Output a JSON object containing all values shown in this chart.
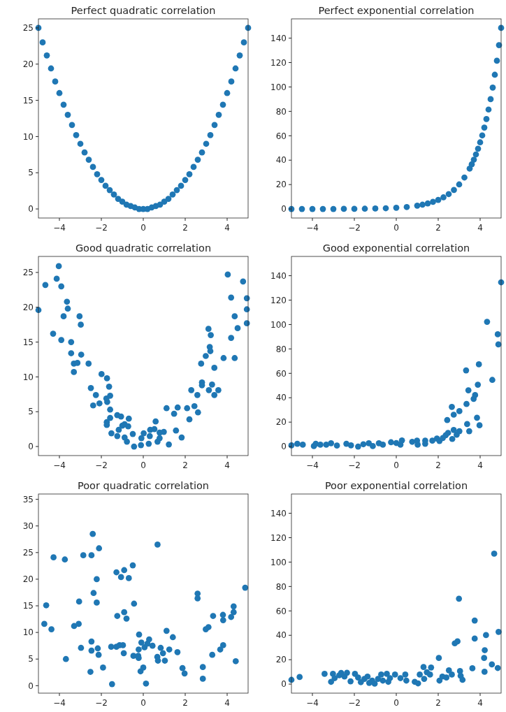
{
  "chart_data": [
    {
      "type": "scatter",
      "title": "Perfect quadratic correlation",
      "color": "#1f77b4",
      "marker": "circle",
      "x": [
        -5,
        -4.8,
        -4.6,
        -4.4,
        -4.2,
        -4,
        -3.8,
        -3.6,
        -3.4,
        -3.2,
        -3,
        -2.8,
        -2.6,
        -2.4,
        -2.2,
        -2,
        -1.8,
        -1.6,
        -1.4,
        -1.2,
        -1,
        -0.8,
        -0.6,
        -0.4,
        -0.2,
        0,
        0.2,
        0.4,
        0.6,
        0.8,
        1,
        1.2,
        1.4,
        1.6,
        1.8,
        2,
        2.2,
        2.4,
        2.6,
        2.8,
        3,
        3.2,
        3.4,
        3.6,
        3.8,
        4,
        4.2,
        4.4,
        4.6,
        4.8,
        5
      ],
      "values": [
        25,
        23,
        21.2,
        19.4,
        17.6,
        16,
        14.4,
        13,
        11.6,
        10.2,
        9,
        7.8,
        6.8,
        5.8,
        4.8,
        4,
        3.2,
        2.6,
        2,
        1.4,
        1,
        0.6,
        0.4,
        0.2,
        0,
        0,
        0,
        0.2,
        0.4,
        0.6,
        1,
        1.4,
        2,
        2.6,
        3.2,
        4,
        4.8,
        5.8,
        6.8,
        7.8,
        9,
        10.2,
        11.6,
        13,
        14.4,
        16,
        17.6,
        19.4,
        21.2,
        23,
        25
      ],
      "xlim": [
        -5,
        5
      ],
      "ylim": [
        -1.25,
        26.25
      ],
      "xticks": [
        -4,
        -2,
        0,
        2,
        4
      ],
      "yticks": [
        0,
        5,
        10,
        15,
        20,
        25
      ]
    },
    {
      "type": "scatter",
      "title": "Perfect exponential correlation",
      "color": "#1f77b4",
      "marker": "circle",
      "x": [
        -5,
        -4.5,
        -4,
        -3.5,
        -3,
        -2.5,
        -2,
        -1.5,
        -1,
        -0.5,
        0,
        0.5,
        1,
        1.25,
        1.5,
        1.75,
        2,
        2.25,
        2.5,
        2.75,
        3,
        3.25,
        3.5,
        3.6,
        3.7,
        3.8,
        3.9,
        4,
        4.1,
        4.2,
        4.3,
        4.4,
        4.5,
        4.6,
        4.7,
        4.8,
        4.9,
        5
      ],
      "values": [
        0,
        0,
        0,
        0,
        0,
        0.1,
        0.1,
        0.2,
        0.4,
        0.6,
        1,
        1.6,
        2.7,
        3.5,
        4.5,
        5.8,
        7.4,
        9.5,
        12.2,
        15.6,
        20.1,
        25.8,
        33.1,
        36.6,
        40.4,
        44.7,
        49.4,
        54.6,
        60.3,
        66.7,
        73.7,
        81.5,
        90,
        99.5,
        110,
        121.5,
        134.3,
        148.4
      ],
      "xlim": [
        -5,
        5
      ],
      "ylim": [
        -7.4,
        155.8
      ],
      "xticks": [
        -4,
        -2,
        0,
        2,
        4
      ],
      "yticks": [
        0,
        20,
        40,
        60,
        80,
        100,
        120,
        140
      ]
    },
    {
      "type": "scatter",
      "title": "Good quadratic correlation",
      "color": "#1f77b4",
      "marker": "circle",
      "x": [
        -5,
        -4.67,
        -4.3,
        -4.13,
        -4.03,
        -3.91,
        -3.91,
        -3.8,
        -3.64,
        -3.6,
        -3.44,
        -3.44,
        -3.31,
        -3.31,
        -3.14,
        -3.04,
        -2.98,
        -2.96,
        -2.61,
        -2.5,
        -2.26,
        -2.39,
        -2.09,
        -1.99,
        -1.73,
        -1.72,
        -1.76,
        -1.63,
        -1.58,
        -1.58,
        -1.58,
        -1.74,
        -1.74,
        -1.52,
        -1.24,
        -1.24,
        -1.06,
        -1.17,
        -1,
        -0.89,
        -0.69,
        -0.72,
        -0.89,
        -0.78,
        -0.5,
        -0.44,
        -0.11,
        -0.09,
        0.02,
        0.26,
        0.31,
        0.33,
        0.53,
        0.59,
        0.78,
        0.78,
        0.68,
        0.98,
        1.11,
        1.22,
        1.47,
        1.56,
        1.64,
        1.83,
        2.09,
        2.2,
        2.29,
        2.44,
        2.58,
        2.61,
        2.76,
        2.8,
        2.8,
        2.98,
        3.11,
        3.22,
        3.17,
        3.2,
        3.13,
        3.28,
        3.39,
        3.39,
        3.58,
        3.83,
        4.03,
        4.19,
        4.19,
        4.36,
        4.36,
        4.5,
        4.76,
        4.94,
        4.94,
        4.94
      ],
      "values": [
        19.6,
        23.2,
        16.2,
        24.1,
        25.9,
        23,
        15.3,
        18.7,
        20.8,
        19.8,
        15,
        13.4,
        11.9,
        10.7,
        12,
        18.7,
        17.5,
        13.2,
        11.9,
        8.4,
        7.4,
        5.9,
        6.2,
        10.4,
        9.8,
        6.4,
        6.9,
        8.6,
        7.3,
        5.3,
        4.1,
        3.5,
        3.1,
        1.9,
        1.5,
        4.5,
        4.3,
        2.4,
        3,
        3.2,
        4,
        2.9,
        1.3,
        0.7,
        1.8,
        0,
        0.2,
        1.2,
        1.9,
        0.4,
        1.5,
        2.4,
        2.5,
        3.6,
        2,
        1.2,
        0.7,
        2.1,
        5.5,
        0.3,
        4.7,
        2.3,
        5.6,
        1.3,
        5.5,
        3.9,
        8.1,
        5.8,
        7.4,
        4.9,
        11.9,
        9.2,
        8.8,
        13,
        16.9,
        16,
        14.3,
        13.7,
        8.1,
        8.9,
        11.3,
        7.4,
        8.1,
        12.7,
        24.7,
        21.4,
        15.6,
        18.7,
        12.7,
        17,
        23.7,
        21.3,
        19.7,
        17.7
      ],
      "xlim": [
        -5,
        5
      ],
      "ylim": [
        -1.3,
        27.3
      ],
      "xticks": [
        -4,
        -2,
        0,
        2,
        4
      ],
      "yticks": [
        0,
        5,
        10,
        15,
        20,
        25
      ]
    },
    {
      "type": "scatter",
      "title": "Good exponential correlation",
      "color": "#1f77b4",
      "marker": "circle",
      "x": [
        -5,
        -4.72,
        -4.46,
        -3.93,
        -3.84,
        -3.62,
        -3.34,
        -3.11,
        -2.83,
        -2.38,
        -2.16,
        -1.82,
        -1.57,
        -1.31,
        -1.12,
        -0.83,
        -0.64,
        -0.25,
        0,
        0.2,
        0.27,
        0.76,
        0.99,
        1.02,
        1.38,
        1.38,
        1.72,
        1.94,
        2.06,
        2.22,
        2.36,
        2.43,
        2.47,
        2.65,
        2.67,
        2.74,
        2.74,
        2.88,
        3.01,
        3.01,
        3.33,
        3.35,
        3.38,
        3.44,
        3.48,
        3.69,
        3.76,
        3.89,
        3.85,
        3.94,
        3.97,
        4.33,
        4.58,
        4.84,
        4.87,
        5
      ],
      "values": [
        1,
        2.3,
        1.5,
        0.4,
        2.3,
        1.5,
        1.5,
        2.7,
        0.8,
        2.3,
        1,
        0,
        1.9,
        2.7,
        0.4,
        2.7,
        1.5,
        3.5,
        2.9,
        1.5,
        5,
        3.9,
        4.8,
        1.5,
        2.3,
        4.8,
        4.8,
        6.6,
        4.6,
        7,
        9.3,
        21.7,
        11.2,
        32.5,
        6.2,
        13.6,
        26.1,
        9.7,
        29,
        12.6,
        62.4,
        34.9,
        18.4,
        46.1,
        12.6,
        39.1,
        42.2,
        50.7,
        23.6,
        67.4,
        17.4,
        102.2,
        54.6,
        92,
        83.7,
        134.6
      ],
      "xlim": [
        -5,
        5
      ],
      "ylim": [
        -7.4,
        155.8
      ],
      "xticks": [
        -4,
        -2,
        0,
        2,
        4
      ],
      "yticks": [
        0,
        20,
        40,
        60,
        80,
        100,
        120,
        140
      ]
    },
    {
      "type": "scatter",
      "title": "Poor quadratic correlation",
      "color": "#1f77b4",
      "marker": "circle",
      "x": [
        -4.72,
        -4.63,
        -4.38,
        -4.28,
        -3.74,
        -3.69,
        -3.3,
        -3.08,
        -3.06,
        -2.97,
        -2.86,
        -2.52,
        -2.47,
        -2.47,
        -2.47,
        -2.41,
        -2.37,
        -2.22,
        -2.22,
        -2.17,
        -2.13,
        -2.11,
        -1.92,
        -1.49,
        -1.53,
        -1.28,
        -1.24,
        -1.28,
        -1.13,
        -1.06,
        -0.97,
        -0.91,
        -0.91,
        -0.93,
        -0.8,
        -0.69,
        -0.5,
        -0.47,
        -0.44,
        -0.24,
        -0.22,
        -0.2,
        -0.22,
        -0.13,
        -0.09,
        0,
        0.06,
        0.13,
        0.2,
        0.28,
        0.44,
        0.68,
        0.67,
        0.7,
        0.83,
        0.94,
        1.03,
        1.11,
        1.24,
        1.41,
        1.63,
        1.87,
        1.97,
        2.59,
        2.59,
        2.84,
        2.84,
        2.98,
        3.11,
        3.29,
        3.33,
        3.67,
        3.81,
        3.8,
        3.81,
        4.19,
        4.31,
        4.31,
        4.41,
        4.86
      ],
      "values": [
        11.6,
        15.1,
        10.6,
        24.1,
        23.7,
        5,
        11.2,
        11.6,
        15.8,
        7.1,
        24.5,
        2.6,
        24.5,
        8.3,
        6.6,
        28.5,
        17.4,
        20,
        15.6,
        7,
        5.8,
        25.8,
        3.4,
        0.3,
        7.3,
        21.3,
        13.1,
        7.3,
        7.6,
        20.4,
        7.6,
        21.7,
        13.8,
        6.1,
        12.6,
        20.2,
        22.6,
        5.6,
        15.4,
        5.6,
        5.2,
        9.6,
        6.8,
        2.7,
        8.1,
        3.4,
        7.2,
        0.4,
        7.9,
        8.7,
        7.5,
        26.5,
        5.4,
        4.7,
        7.1,
        6.1,
        4.7,
        10.3,
        6.8,
        9.1,
        6.3,
        3.3,
        2.3,
        17.3,
        16.4,
        3.5,
        1.3,
        10.6,
        11,
        5.8,
        13.1,
        6.8,
        7.6,
        13.3,
        12.3,
        12.9,
        13.8,
        14.9,
        4.6,
        18.4
      ],
      "xlim": [
        -5,
        5
      ],
      "ylim": [
        -1.4,
        36
      ],
      "xticks": [
        -4,
        -2,
        0,
        2,
        4
      ],
      "yticks": [
        0,
        5,
        10,
        15,
        20,
        25,
        30,
        35
      ]
    },
    {
      "type": "scatter",
      "title": "Poor exponential correlation",
      "color": "#1f77b4",
      "marker": "circle",
      "x": [
        -5,
        -4.61,
        -3.42,
        -3.11,
        -3.02,
        -2.94,
        -2.72,
        -2.63,
        -2.47,
        -2.35,
        -2.18,
        -1.97,
        -1.82,
        -1.69,
        -1.52,
        -1.37,
        -1.29,
        -1.15,
        -1.03,
        -0.87,
        -0.72,
        -0.64,
        -0.45,
        -0.38,
        -0.3,
        -0.06,
        0.2,
        0.43,
        0.48,
        0.88,
        1.04,
        1.12,
        1.3,
        1.33,
        1.46,
        1.61,
        1.66,
        2.03,
        2.06,
        2.2,
        2.39,
        2.51,
        2.65,
        2.79,
        2.92,
        2.99,
        3.04,
        3.07,
        3.16,
        3.63,
        3.74,
        3.74,
        4.19,
        4.22,
        4.21,
        4.28,
        4.56,
        4.67,
        4.84,
        4.88
      ],
      "values": [
        3.5,
        5.8,
        8.4,
        1.9,
        8.4,
        4.9,
        7.2,
        9.1,
        6.2,
        9.3,
        2.3,
        8.4,
        5.4,
        1.6,
        4.3,
        6.2,
        1,
        2.9,
        0.4,
        4.3,
        7.8,
        2.9,
        8.4,
        1.9,
        4.9,
        7.8,
        4.9,
        7.8,
        2.9,
        1.9,
        0.6,
        7.8,
        14,
        4.3,
        9.7,
        7.8,
        13.6,
        21.4,
        2.9,
        6.2,
        5.4,
        11.3,
        7.8,
        33.4,
        35,
        70,
        10.7,
        6.8,
        3.5,
        13,
        52.1,
        37.3,
        21.4,
        27.8,
        10.1,
        40.2,
        16.1,
        106.9,
        13.2,
        42.8
      ],
      "xlim": [
        -5,
        5
      ],
      "ylim": [
        -7.4,
        155.8
      ],
      "xticks": [
        -4,
        -2,
        0,
        2,
        4
      ],
      "yticks": [
        0,
        20,
        40,
        60,
        80,
        100,
        120,
        140
      ]
    }
  ]
}
